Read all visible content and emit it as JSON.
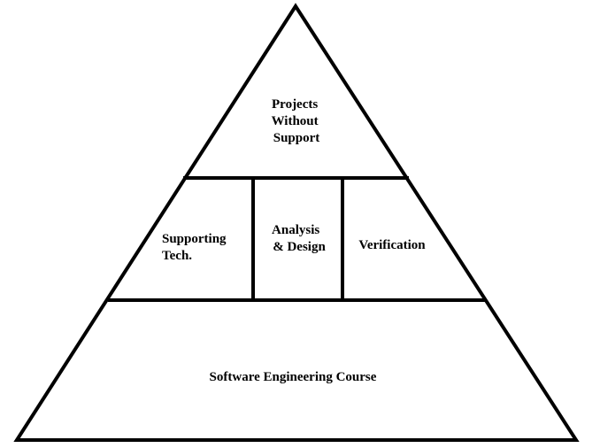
{
  "colors": {
    "background": "#ffffff",
    "stroke": "#000000",
    "text": "#000000"
  },
  "pyramid": {
    "top": {
      "lines": [
        "Projects",
        "Without",
        "Support"
      ]
    },
    "middle": [
      {
        "lines": [
          "Supporting",
          "Tech."
        ]
      },
      {
        "lines": [
          "Analysis",
          "& Design"
        ]
      },
      {
        "lines": [
          "Verification"
        ]
      }
    ],
    "bottom": {
      "lines": [
        "Software Engineering Course"
      ]
    }
  }
}
